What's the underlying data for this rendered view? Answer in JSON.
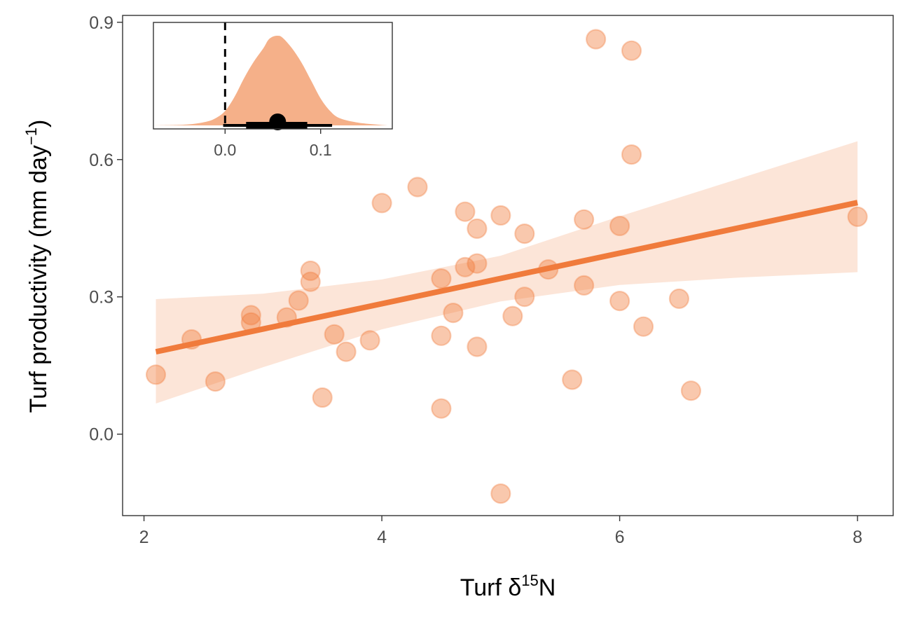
{
  "chart_data": [
    {
      "type": "scatter",
      "xlabel": "Turf δ15N",
      "xlabel_parts": {
        "main": "Turf δ",
        "sup": "15",
        "tail": "N"
      },
      "ylabel": "Turf productivity (mm day−1)",
      "ylabel_parts": {
        "main": "Turf productivity (mm day",
        "sup": "−1",
        "tail": ")"
      },
      "xlim": [
        1.82,
        8.3
      ],
      "ylim": [
        -0.178,
        0.915
      ],
      "x_ticks": [
        2,
        4,
        6,
        8
      ],
      "x_tick_labels": [
        "2",
        "4",
        "6",
        "8"
      ],
      "y_ticks": [
        0.0,
        0.3,
        0.6,
        0.9
      ],
      "y_tick_labels": [
        "0.0",
        "0.3",
        "0.6",
        "0.9"
      ],
      "grid": false,
      "color": "#f07b3c",
      "points": [
        {
          "x": 2.1,
          "y": 0.13
        },
        {
          "x": 2.4,
          "y": 0.207
        },
        {
          "x": 2.6,
          "y": 0.115
        },
        {
          "x": 2.9,
          "y": 0.26
        },
        {
          "x": 2.9,
          "y": 0.244
        },
        {
          "x": 3.2,
          "y": 0.255
        },
        {
          "x": 3.3,
          "y": 0.292
        },
        {
          "x": 3.4,
          "y": 0.357
        },
        {
          "x": 3.4,
          "y": 0.333
        },
        {
          "x": 3.5,
          "y": 0.08
        },
        {
          "x": 3.6,
          "y": 0.218
        },
        {
          "x": 3.7,
          "y": 0.18
        },
        {
          "x": 3.9,
          "y": 0.205
        },
        {
          "x": 4.0,
          "y": 0.505
        },
        {
          "x": 4.3,
          "y": 0.54
        },
        {
          "x": 4.5,
          "y": 0.34
        },
        {
          "x": 4.5,
          "y": 0.215
        },
        {
          "x": 4.5,
          "y": 0.056
        },
        {
          "x": 4.6,
          "y": 0.265
        },
        {
          "x": 4.7,
          "y": 0.486
        },
        {
          "x": 4.7,
          "y": 0.365
        },
        {
          "x": 4.8,
          "y": 0.449
        },
        {
          "x": 4.8,
          "y": 0.373
        },
        {
          "x": 4.8,
          "y": 0.191
        },
        {
          "x": 5.0,
          "y": 0.478
        },
        {
          "x": 5.0,
          "y": -0.13
        },
        {
          "x": 5.1,
          "y": 0.258
        },
        {
          "x": 5.2,
          "y": 0.438
        },
        {
          "x": 5.2,
          "y": 0.3
        },
        {
          "x": 5.4,
          "y": 0.36
        },
        {
          "x": 5.6,
          "y": 0.119
        },
        {
          "x": 5.7,
          "y": 0.469
        },
        {
          "x": 5.7,
          "y": 0.325
        },
        {
          "x": 5.8,
          "y": 0.863
        },
        {
          "x": 6.0,
          "y": 0.455
        },
        {
          "x": 6.0,
          "y": 0.291
        },
        {
          "x": 6.1,
          "y": 0.838
        },
        {
          "x": 6.1,
          "y": 0.611
        },
        {
          "x": 6.2,
          "y": 0.235
        },
        {
          "x": 6.5,
          "y": 0.296
        },
        {
          "x": 6.6,
          "y": 0.095
        },
        {
          "x": 8.0,
          "y": 0.475
        }
      ],
      "fit_line": {
        "x": [
          2.1,
          8.0
        ],
        "y": [
          0.18,
          0.506
        ]
      },
      "ribbon": {
        "x": [
          2.1,
          3.0,
          4.0,
          5.0,
          6.0,
          7.0,
          8.0
        ],
        "lower": [
          0.067,
          0.146,
          0.229,
          0.29,
          0.326,
          0.342,
          0.354
        ],
        "upper": [
          0.295,
          0.307,
          0.338,
          0.39,
          0.476,
          0.558,
          0.64
        ]
      }
    },
    {
      "type": "area",
      "role": "inset posterior density",
      "xlim": [
        -0.075,
        0.175
      ],
      "x_ticks": [
        0.0,
        0.1
      ],
      "x_tick_labels": [
        "0.0",
        "0.1"
      ],
      "reference_line_x": 0.0,
      "color": "#f5b089",
      "density_x": [
        -0.075,
        -0.04,
        -0.02,
        -0.01,
        0.0,
        0.01,
        0.02,
        0.03,
        0.04,
        0.045,
        0.05,
        0.055,
        0.06,
        0.07,
        0.08,
        0.09,
        0.1,
        0.11,
        0.12,
        0.14,
        0.17
      ],
      "density_y": [
        0.0,
        0.01,
        0.04,
        0.08,
        0.16,
        0.32,
        0.53,
        0.71,
        0.86,
        0.95,
        0.99,
        1.0,
        0.98,
        0.86,
        0.7,
        0.5,
        0.3,
        0.16,
        0.08,
        0.03,
        0.0
      ],
      "point_estimate": 0.055,
      "interval_inner": [
        0.022,
        0.086
      ],
      "interval_outer": [
        -0.002,
        0.112
      ]
    }
  ]
}
